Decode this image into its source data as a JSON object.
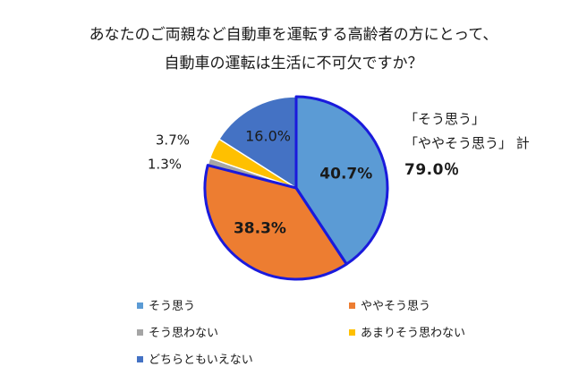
{
  "chart_data": {
    "type": "pie",
    "title_lines": [
      "あなたのご両親など自動車を運転する高齢者の方にとって、",
      "自動車の運転は生活に不可欠ですか？"
    ],
    "series": [
      {
        "name": "そう思う",
        "value": 40.7,
        "label": "40.7%",
        "color": "#5b9bd5"
      },
      {
        "name": "ややそう思う",
        "value": 38.3,
        "label": "38.3%",
        "color": "#ed7d31"
      },
      {
        "name": "そう思わない",
        "value": 1.3,
        "label": "1.3%",
        "color": "#a5a5a5"
      },
      {
        "name": "あまりそう思わない",
        "value": 3.7,
        "label": "3.7%",
        "color": "#ffc000"
      },
      {
        "name": "どちらともいえない",
        "value": 16.0,
        "label": "16.0%",
        "color": "#4472c4"
      }
    ],
    "highlight_outline_color": "#1a1adc",
    "legend_position": "bottom",
    "annotation": {
      "line1": "「そう思う」",
      "line2": "「ややそう思う」 計",
      "total": "79.0％"
    }
  }
}
